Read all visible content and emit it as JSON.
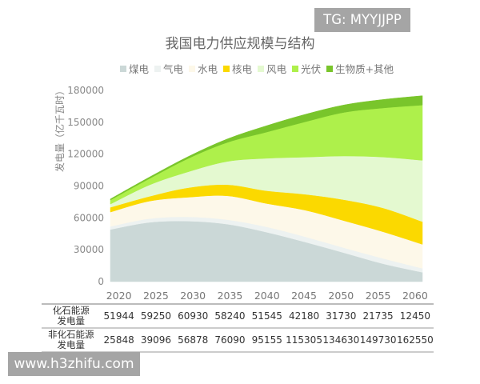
{
  "watermarks": {
    "top_right": "TG: MYYJJPP",
    "bottom_left": "www.h3zhifu.com"
  },
  "chart_data": {
    "type": "area",
    "stacked": true,
    "title": "我国电力供应规模与结构",
    "ylabel": "发电量（亿千瓦时）",
    "xlabel": "",
    "ylim": [
      0,
      180000
    ],
    "yticks": [
      "0",
      "30000",
      "60000",
      "90000",
      "120000",
      "150000",
      "180000"
    ],
    "categories": [
      "2020",
      "2025",
      "2030",
      "2035",
      "2040",
      "2045",
      "2050",
      "2055",
      "2060"
    ],
    "legend_position": "top",
    "grid": false,
    "series": [
      {
        "name": "煤电",
        "color": "#cbd8d7",
        "values": [
          49044,
          55750,
          56930,
          54040,
          46545,
          37180,
          27030,
          16735,
          8750
        ]
      },
      {
        "name": "气电",
        "color": "#edf2f1",
        "values": [
          2900,
          3500,
          4000,
          4200,
          5000,
          5000,
          4700,
          5000,
          3700
        ]
      },
      {
        "name": "水电",
        "color": "#fdf8e9",
        "values": [
          13500,
          16500,
          18500,
          22500,
          22000,
          25000,
          25500,
          25100,
          22600
        ]
      },
      {
        "name": "核电",
        "color": "#fbd900",
        "values": [
          4500,
          4500,
          9000,
          10500,
          12000,
          15000,
          19800,
          22400,
          21400
        ]
      },
      {
        "name": "风电",
        "color": "#e4f9d0",
        "values": [
          3000,
          10700,
          15000,
          21900,
          30500,
          35000,
          41200,
          48000,
          57700
        ]
      },
      {
        "name": "光伏",
        "color": "#aef04b",
        "values": [
          3848,
          5996,
          12578,
          17890,
          24655,
          33305,
          41130,
          46230,
          52050
        ]
      },
      {
        "name": "生物质+其他",
        "color": "#79c52b",
        "values": [
          1000,
          1400,
          1800,
          3300,
          6000,
          7000,
          7000,
          8000,
          8800
        ]
      }
    ],
    "table": {
      "rows": [
        {
          "label_line1": "化石能源",
          "label_line2": "发电量",
          "values": [
            "51944",
            "59250",
            "60930",
            "58240",
            "51545",
            "42180",
            "31730",
            "21735",
            "12450"
          ]
        },
        {
          "label_line1": "非化石能源",
          "label_line2": "发电量",
          "values": [
            "25848",
            "39096",
            "56878",
            "76090",
            "95155",
            "115305",
            "134630",
            "149730",
            "162550"
          ]
        }
      ]
    }
  }
}
